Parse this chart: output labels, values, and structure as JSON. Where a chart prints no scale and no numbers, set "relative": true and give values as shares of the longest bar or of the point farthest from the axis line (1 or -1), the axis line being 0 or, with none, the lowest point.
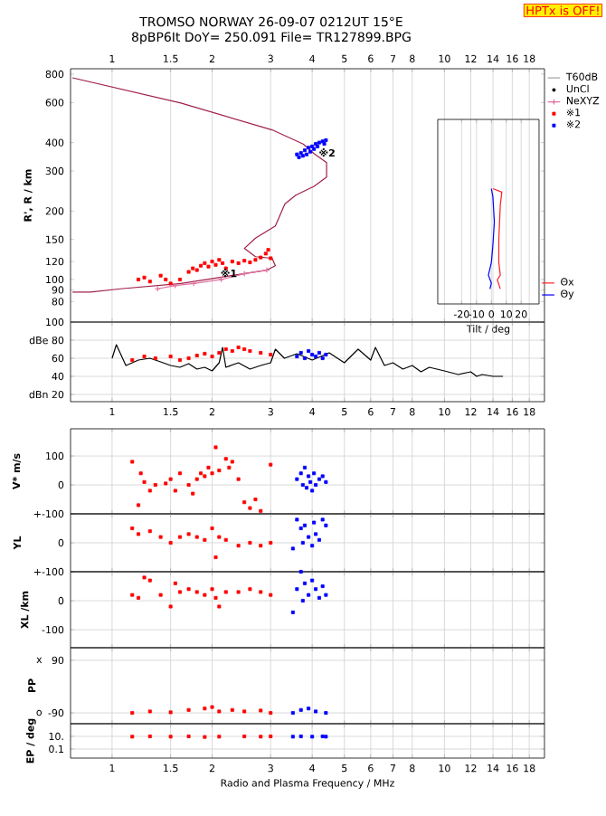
{
  "chart_data": [
    {
      "type": "line",
      "title": "TROMSO NORWAY 26-09-07 0212UT 15°E",
      "subtitle": "8pBP6It DoY= 250.091 File= TR127899.BPG",
      "ylabel": "R', R / km",
      "log": "xy",
      "xlim": [
        0.75,
        20
      ],
      "ylim": [
        65,
        845
      ],
      "xticks": [
        1,
        1.5,
        2,
        3,
        4,
        5,
        6,
        7,
        8,
        10,
        12,
        14,
        16,
        18
      ],
      "yticks": [
        80,
        90,
        100,
        120,
        150,
        200,
        300,
        400,
        600,
        800
      ],
      "grid": "x",
      "legend": "right",
      "annotations": [
        "HPTx is OFF!",
        {
          "text": "※1",
          "x": 2.1,
          "y": 107
        },
        {
          "text": "※2",
          "x": 4.15,
          "y": 362
        }
      ],
      "series": [
        {
          "color": "#a0204a",
          "x": [
            0.76,
            1.61,
            3.03,
            3.76,
            4.05,
            4.42,
            4.42,
            4.05,
            3.57,
            3.31,
            3.1,
            2.7,
            2.5,
            2.7,
            3.03,
            3.1,
            2.92,
            1.61,
            1.06,
            0.86,
            0.76
          ],
          "values": [
            771,
            597,
            455,
            394,
            358,
            327,
            282,
            257,
            235,
            215,
            172,
            152,
            137,
            126,
            124,
            115,
            110,
            96,
            91,
            88,
            88
          ]
        },
        {
          "name": "T60dB",
          "color": "#a0a0a0"
        },
        {
          "name": "UnCl",
          "type": "scatter",
          "marker": "circle",
          "color": "#000000"
        },
        {
          "name": "NeXYZ",
          "color": "#e070a0",
          "marker": "cross",
          "x": [
            1.37,
            1.55,
            1.76,
            2.13,
            2.5,
            2.92
          ],
          "values": [
            91,
            94,
            96,
            100,
            106,
            110
          ]
        },
        {
          "name": "※1",
          "type": "scatter",
          "marker": "square",
          "color": "#ff0000",
          "x": [
            1.2,
            1.25,
            1.3,
            1.4,
            1.45,
            1.5,
            1.6,
            1.7,
            1.75,
            1.8,
            1.85,
            1.9,
            1.95,
            2.0,
            2.05,
            2.1,
            2.15,
            2.2,
            2.3,
            2.4,
            2.5,
            2.6,
            2.7,
            2.8,
            2.9,
            2.95,
            3.0
          ],
          "values": [
            100,
            102,
            98,
            104,
            100,
            96,
            100,
            108,
            112,
            110,
            115,
            118,
            114,
            120,
            116,
            122,
            118,
            112,
            120,
            118,
            121,
            119,
            122,
            125,
            130,
            135,
            124
          ]
        },
        {
          "name": "※2",
          "type": "scatter",
          "marker": "square",
          "color": "#0000ff",
          "x": [
            3.6,
            3.65,
            3.7,
            3.75,
            3.8,
            3.85,
            3.9,
            3.95,
            4.0,
            4.05,
            4.1,
            4.15,
            4.2,
            4.3,
            4.35,
            4.4
          ],
          "values": [
            355,
            345,
            360,
            350,
            370,
            355,
            380,
            365,
            385,
            375,
            395,
            385,
            400,
            405,
            395,
            410
          ]
        }
      ]
    },
    {
      "type": "line",
      "relative": true,
      "xlabel": "Tilt / deg",
      "xlim": [
        -36,
        32
      ],
      "xticks": [
        -20,
        -10,
        0,
        10,
        20
      ],
      "tick_labels": "x",
      "grid": "x",
      "legend": "bottom right",
      "series": [
        {
          "name": "Θx",
          "color": "#ff2020",
          "x": [
            1,
            7,
            6,
            5,
            5,
            6,
            4,
            6
          ],
          "values": [
            1,
            0.97,
            0.86,
            0.56,
            0.36,
            0.25,
            0.21,
            0.13
          ]
        },
        {
          "name": "Θy",
          "color": "#0000ff",
          "x": [
            0,
            1,
            2,
            1,
            0,
            -2,
            0,
            -1
          ],
          "values": [
            1,
            0.93,
            0.71,
            0.51,
            0.36,
            0.25,
            0.18,
            0.13
          ]
        }
      ]
    },
    {
      "type": "line",
      "log": "x",
      "xlim": [
        0.75,
        20
      ],
      "ylim": [
        12,
        100
      ],
      "xticks": [
        1,
        1.5,
        2,
        3,
        4,
        5,
        6,
        7,
        8,
        10,
        12,
        14,
        16,
        18
      ],
      "yticks": [
        100,
        {
          "value": 80,
          "label": "dBe 80"
        },
        60,
        40,
        {
          "value": 20,
          "label": "dBn 20"
        }
      ],
      "grid": true,
      "series": [
        {
          "color": "#000000",
          "x": [
            1.0,
            1.03,
            1.06,
            1.1,
            1.15,
            1.2,
            1.3,
            1.4,
            1.5,
            1.6,
            1.7,
            1.8,
            1.9,
            2.0,
            2.1,
            2.15,
            2.2,
            2.4,
            2.6,
            2.8,
            3.0,
            3.1,
            3.3,
            3.6,
            4.0,
            4.5,
            5.0,
            5.5,
            6.0,
            6.2,
            6.6,
            7.0,
            7.5,
            8.0,
            8.5,
            9.0,
            10.0,
            11,
            12,
            12.5,
            13,
            14,
            15
          ],
          "values": [
            60,
            75,
            65,
            52,
            55,
            58,
            60,
            56,
            52,
            50,
            54,
            48,
            50,
            46,
            55,
            72,
            50,
            55,
            48,
            52,
            55,
            70,
            60,
            65,
            58,
            66,
            55,
            70,
            58,
            72,
            52,
            55,
            48,
            52,
            45,
            50,
            46,
            42,
            45,
            40,
            42,
            40,
            40
          ]
        },
        {
          "type": "scatter",
          "marker": "square",
          "color": "#ff0000",
          "x": [
            1.15,
            1.25,
            1.35,
            1.5,
            1.6,
            1.7,
            1.8,
            1.9,
            2.0,
            2.1,
            2.2,
            2.3,
            2.4,
            2.5,
            2.6,
            2.8,
            3.0
          ],
          "values": [
            58,
            62,
            60,
            62,
            58,
            60,
            63,
            65,
            62,
            66,
            70,
            68,
            72,
            70,
            68,
            66,
            64
          ]
        },
        {
          "type": "scatter",
          "marker": "square",
          "color": "#0000ff",
          "x": [
            3.6,
            3.7,
            3.8,
            3.9,
            4.0,
            4.1,
            4.2,
            4.3,
            4.4
          ],
          "values": [
            62,
            66,
            60,
            68,
            64,
            62,
            66,
            60,
            64
          ]
        }
      ]
    },
    {
      "type": "scatter",
      "marker": "square",
      "ylabel": "V* m/s",
      "log": "x",
      "xlim": [
        0.75,
        20
      ],
      "ylim": [
        -100,
        194
      ],
      "xticks": [
        1,
        1.5,
        2,
        3,
        4,
        5,
        6,
        7,
        8,
        10,
        12,
        14,
        16,
        18
      ],
      "yticks": [
        100,
        0,
        {
          "value": -100,
          "label": "+-100"
        }
      ],
      "tick_labels": "y",
      "grid": true,
      "series": [
        {
          "color": "#ff0000",
          "x": [
            1.15,
            1.2,
            1.22,
            1.25,
            1.3,
            1.35,
            1.45,
            1.5,
            1.55,
            1.6,
            1.7,
            1.75,
            1.8,
            1.85,
            1.9,
            1.95,
            2.0,
            2.05,
            2.1,
            2.2,
            2.25,
            2.3,
            2.4,
            2.5,
            2.6,
            2.7,
            2.8,
            3.0
          ],
          "values": [
            80,
            -70,
            40,
            10,
            -20,
            0,
            5,
            20,
            -20,
            40,
            0,
            -30,
            20,
            40,
            30,
            60,
            40,
            130,
            50,
            90,
            60,
            80,
            20,
            -60,
            -80,
            -50,
            -90,
            70
          ]
        },
        {
          "color": "#0000ff",
          "x": [
            3.6,
            3.7,
            3.75,
            3.8,
            3.85,
            3.9,
            3.95,
            4.0,
            4.05,
            4.1,
            4.2,
            4.3,
            4.4
          ],
          "values": [
            20,
            40,
            0,
            60,
            -10,
            30,
            10,
            -20,
            40,
            0,
            20,
            30,
            10
          ]
        }
      ]
    },
    {
      "type": "scatter",
      "marker": "square",
      "ylabel": "YL",
      "log": "x",
      "xlim": [
        0.75,
        20
      ],
      "ylim": [
        -100,
        100
      ],
      "xticks": [
        1,
        1.5,
        2,
        3,
        4,
        5,
        6,
        7,
        8,
        10,
        12,
        14,
        16,
        18
      ],
      "yticks": [
        0,
        {
          "value": -100,
          "label": "+-100"
        }
      ],
      "tick_labels": "y",
      "grid": true,
      "series": [
        {
          "color": "#ff0000",
          "x": [
            1.15,
            1.2,
            1.3,
            1.4,
            1.5,
            1.6,
            1.7,
            1.8,
            1.9,
            2.0,
            2.05,
            2.1,
            2.2,
            2.4,
            2.6,
            2.8,
            3.0
          ],
          "values": [
            50,
            30,
            40,
            20,
            0,
            20,
            30,
            20,
            10,
            50,
            -50,
            20,
            10,
            -10,
            0,
            -10,
            0
          ]
        },
        {
          "color": "#0000ff",
          "x": [
            3.5,
            3.6,
            3.7,
            3.75,
            3.8,
            3.9,
            4.0,
            4.05,
            4.1,
            4.2,
            4.3,
            4.4
          ],
          "values": [
            -20,
            80,
            50,
            0,
            60,
            20,
            -10,
            70,
            30,
            10,
            80,
            60
          ]
        }
      ]
    },
    {
      "type": "scatter",
      "marker": "square",
      "ylabel": "XL /km",
      "log": "x",
      "xlim": [
        0.75,
        20
      ],
      "ylim": [
        -162,
        100
      ],
      "xticks": [
        1,
        1.5,
        2,
        3,
        4,
        5,
        6,
        7,
        8,
        10,
        12,
        14,
        16,
        18
      ],
      "yticks": [
        0,
        -100
      ],
      "tick_labels": "y",
      "grid": true,
      "series": [
        {
          "color": "#ff0000",
          "x": [
            1.15,
            1.2,
            1.25,
            1.3,
            1.4,
            1.5,
            1.55,
            1.6,
            1.7,
            1.8,
            1.9,
            2.0,
            2.05,
            2.1,
            2.2,
            2.4,
            2.6,
            2.8,
            3.0
          ],
          "values": [
            20,
            10,
            80,
            70,
            20,
            -20,
            60,
            30,
            40,
            30,
            20,
            40,
            10,
            -20,
            30,
            30,
            40,
            30,
            20
          ]
        },
        {
          "color": "#0000ff",
          "x": [
            3.5,
            3.6,
            3.7,
            3.75,
            3.8,
            3.9,
            4.0,
            4.1,
            4.2,
            4.3,
            4.4
          ],
          "values": [
            -40,
            40,
            100,
            0,
            60,
            20,
            70,
            40,
            10,
            50,
            20
          ]
        }
      ]
    },
    {
      "type": "scatter",
      "marker": "square",
      "ylabel": "PP",
      "log": "x",
      "xlim": [
        0.75,
        20
      ],
      "ylim": [
        -127,
        133
      ],
      "xticks": [
        1,
        1.5,
        2,
        3,
        4,
        5,
        6,
        7,
        8,
        10,
        12,
        14,
        16,
        18
      ],
      "yticks": [
        90,
        -90
      ],
      "tick_labels": "y",
      "grid": true,
      "annotations": [
        "x",
        "o"
      ],
      "series": [
        {
          "color": "#ff0000",
          "x": [
            1.15,
            1.3,
            1.5,
            1.7,
            1.9,
            2.0,
            2.1,
            2.3,
            2.5,
            2.8,
            3.0
          ],
          "values": [
            -90,
            -85,
            -88,
            -80,
            -75,
            -70,
            -85,
            -80,
            -85,
            -82,
            -90
          ]
        },
        {
          "color": "#0000ff",
          "x": [
            3.5,
            3.7,
            3.9,
            4.1,
            4.4
          ],
          "values": [
            -90,
            -80,
            -75,
            -85,
            -90
          ]
        }
      ]
    },
    {
      "type": "scatter",
      "marker": "square",
      "ylabel": "EP / deg",
      "xlabel": "Radio and Plasma Frequency / MHz",
      "log": "xy",
      "xlim": [
        0.75,
        20
      ],
      "ylim": [
        0.0037,
        1000
      ],
      "xticks": [
        1,
        1.5,
        2,
        3,
        4,
        5,
        6,
        7,
        8,
        10,
        12,
        14,
        16,
        18
      ],
      "yticks": [
        {
          "value": 10,
          "label": "10."
        },
        0.1
      ],
      "grid": true,
      "series": [
        {
          "color": "#ff0000",
          "x": [
            1.15,
            1.3,
            1.5,
            1.7,
            1.9,
            2.1,
            2.5,
            2.8,
            3.0
          ],
          "values": [
            9,
            10,
            9,
            10,
            8,
            9,
            10,
            9,
            10
          ]
        },
        {
          "color": "#0000ff",
          "x": [
            3.5,
            3.7,
            4.0,
            4.3,
            4.4
          ],
          "values": [
            9,
            10,
            9,
            10,
            9
          ]
        }
      ]
    }
  ]
}
